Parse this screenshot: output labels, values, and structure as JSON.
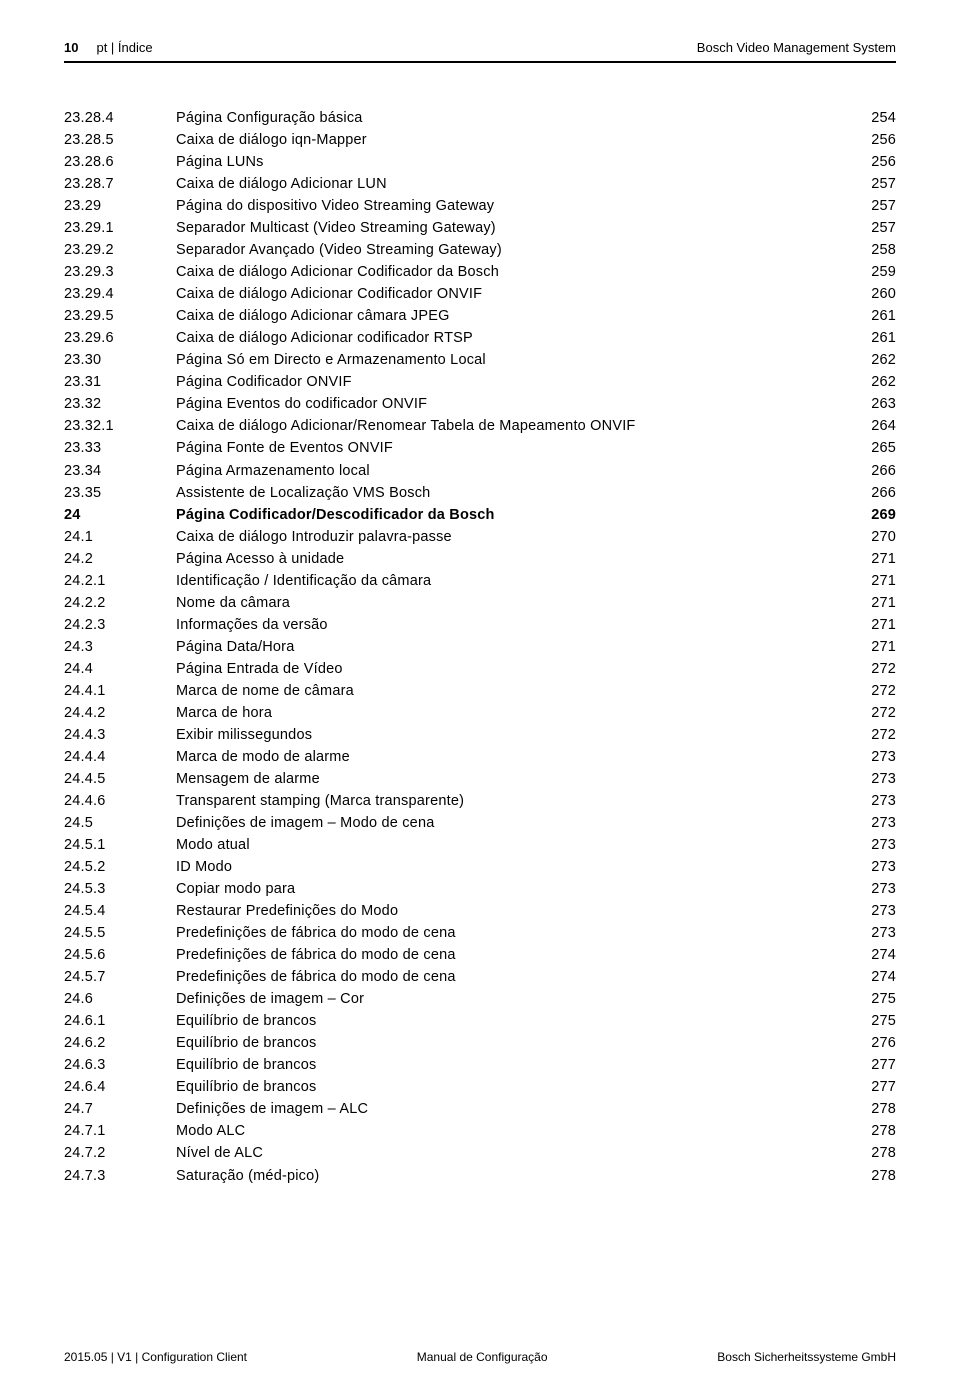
{
  "header": {
    "page_number": "10",
    "section": "pt | Índice",
    "product": "Bosch Video Management System"
  },
  "toc": {
    "rows": [
      {
        "num": "23.28.4",
        "title": "Página Configuração básica",
        "page": "254",
        "bold": false
      },
      {
        "num": "23.28.5",
        "title": "Caixa de diálogo iqn-Mapper",
        "page": "256",
        "bold": false
      },
      {
        "num": "23.28.6",
        "title": "Página LUNs",
        "page": "256",
        "bold": false
      },
      {
        "num": "23.28.7",
        "title": "Caixa de diálogo Adicionar LUN",
        "page": "257",
        "bold": false
      },
      {
        "num": "23.29",
        "title": "Página do dispositivo Video Streaming Gateway",
        "page": "257",
        "bold": false
      },
      {
        "num": "23.29.1",
        "title": "Separador Multicast (Video Streaming Gateway)",
        "page": "257",
        "bold": false
      },
      {
        "num": "23.29.2",
        "title": "Separador Avançado (Video Streaming Gateway)",
        "page": "258",
        "bold": false
      },
      {
        "num": "23.29.3",
        "title": "Caixa de diálogo Adicionar Codificador da Bosch",
        "page": "259",
        "bold": false
      },
      {
        "num": "23.29.4",
        "title": "Caixa de diálogo Adicionar Codificador ONVIF",
        "page": "260",
        "bold": false
      },
      {
        "num": "23.29.5",
        "title": "Caixa de diálogo Adicionar câmara JPEG",
        "page": "261",
        "bold": false
      },
      {
        "num": "23.29.6",
        "title": "Caixa de diálogo Adicionar codificador RTSP",
        "page": "261",
        "bold": false
      },
      {
        "num": "23.30",
        "title": "Página Só em Directo e Armazenamento Local",
        "page": "262",
        "bold": false
      },
      {
        "num": "23.31",
        "title": "Página Codificador ONVIF",
        "page": "262",
        "bold": false
      },
      {
        "num": "23.32",
        "title": "Página Eventos do codificador ONVIF",
        "page": "263",
        "bold": false
      },
      {
        "num": "23.32.1",
        "title": "Caixa de diálogo Adicionar/Renomear Tabela de Mapeamento ONVIF",
        "page": "264",
        "bold": false
      },
      {
        "num": "23.33",
        "title": "Página Fonte de Eventos ONVIF",
        "page": "265",
        "bold": false
      },
      {
        "num": "23.34",
        "title": "Página Armazenamento local",
        "page": "266",
        "bold": false
      },
      {
        "num": "23.35",
        "title": "Assistente de Localização VMS Bosch",
        "page": "266",
        "bold": false
      },
      {
        "num": "24",
        "title": "Página Codificador/Descodificador da Bosch",
        "page": "269",
        "bold": true
      },
      {
        "num": "24.1",
        "title": "Caixa de diálogo Introduzir palavra-passe",
        "page": "270",
        "bold": false
      },
      {
        "num": "24.2",
        "title": "Página Acesso à unidade",
        "page": "271",
        "bold": false
      },
      {
        "num": "24.2.1",
        "title": "Identificação / Identificação da câmara",
        "page": "271",
        "bold": false
      },
      {
        "num": "24.2.2",
        "title": "Nome da câmara",
        "page": "271",
        "bold": false
      },
      {
        "num": "24.2.3",
        "title": "Informações da versão",
        "page": "271",
        "bold": false
      },
      {
        "num": "24.3",
        "title": "Página Data/Hora",
        "page": "271",
        "bold": false
      },
      {
        "num": "24.4",
        "title": "Página Entrada de Vídeo",
        "page": "272",
        "bold": false
      },
      {
        "num": "24.4.1",
        "title": "Marca de nome de câmara",
        "page": "272",
        "bold": false
      },
      {
        "num": "24.4.2",
        "title": "Marca de hora",
        "page": "272",
        "bold": false
      },
      {
        "num": "24.4.3",
        "title": "Exibir milissegundos",
        "page": "272",
        "bold": false
      },
      {
        "num": "24.4.4",
        "title": "Marca de modo de alarme",
        "page": "273",
        "bold": false
      },
      {
        "num": "24.4.5",
        "title": "Mensagem de alarme",
        "page": "273",
        "bold": false
      },
      {
        "num": "24.4.6",
        "title": "Transparent stamping (Marca transparente)",
        "page": "273",
        "bold": false
      },
      {
        "num": "24.5",
        "title": "Definições de imagem – Modo de cena",
        "page": "273",
        "bold": false
      },
      {
        "num": "24.5.1",
        "title": "Modo atual",
        "page": "273",
        "bold": false
      },
      {
        "num": "24.5.2",
        "title": "ID Modo",
        "page": "273",
        "bold": false
      },
      {
        "num": "24.5.3",
        "title": "Copiar modo para",
        "page": "273",
        "bold": false
      },
      {
        "num": "24.5.4",
        "title": "Restaurar Predefinições do Modo",
        "page": "273",
        "bold": false
      },
      {
        "num": "24.5.5",
        "title": "Predefinições de fábrica do modo de cena",
        "page": "273",
        "bold": false
      },
      {
        "num": "24.5.6",
        "title": "Predefinições de fábrica do modo de cena",
        "page": "274",
        "bold": false
      },
      {
        "num": "24.5.7",
        "title": "Predefinições de fábrica do modo de cena",
        "page": "274",
        "bold": false
      },
      {
        "num": "24.6",
        "title": "Definições de imagem – Cor",
        "page": "275",
        "bold": false
      },
      {
        "num": "24.6.1",
        "title": "Equilíbrio de brancos",
        "page": "275",
        "bold": false
      },
      {
        "num": "24.6.2",
        "title": "Equilíbrio de brancos",
        "page": "276",
        "bold": false
      },
      {
        "num": "24.6.3",
        "title": "Equilíbrio de brancos",
        "page": "277",
        "bold": false
      },
      {
        "num": "24.6.4",
        "title": "Equilíbrio de brancos",
        "page": "277",
        "bold": false
      },
      {
        "num": "24.7",
        "title": "Definições de imagem – ALC",
        "page": "278",
        "bold": false
      },
      {
        "num": "24.7.1",
        "title": "Modo ALC",
        "page": "278",
        "bold": false
      },
      {
        "num": "24.7.2",
        "title": "Nível de ALC",
        "page": "278",
        "bold": false
      },
      {
        "num": "24.7.3",
        "title": "Saturação (méd-pico)",
        "page": "278",
        "bold": false
      }
    ]
  },
  "footer": {
    "left": "2015.05 | V1 | Configuration Client",
    "center": "Manual de Configuração",
    "right": "Bosch Sicherheitssysteme GmbH"
  }
}
